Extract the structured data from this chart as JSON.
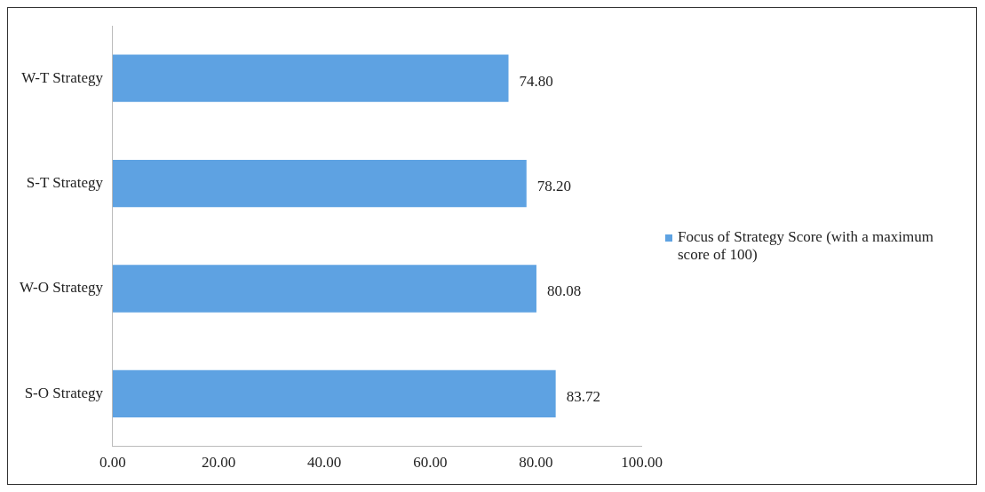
{
  "chart_data": {
    "type": "bar",
    "orientation": "horizontal",
    "categories": [
      "W-T Strategy",
      "S-T Strategy",
      "W-O Strategy",
      "S-O Strategy"
    ],
    "series": [
      {
        "name": "Focus of Strategy Score (with a maximum score of 100)",
        "color": "#5ea2e2",
        "values": [
          74.8,
          78.2,
          80.08,
          83.72
        ],
        "value_labels": [
          "74.80",
          "78.20",
          "80.08",
          "83.72"
        ]
      }
    ],
    "xlim": [
      0,
      100
    ],
    "xticks": [
      {
        "value": 0,
        "label": "0.00"
      },
      {
        "value": 20,
        "label": "20.00"
      },
      {
        "value": 40,
        "label": "40.00"
      },
      {
        "value": 60,
        "label": "60.00"
      },
      {
        "value": 80,
        "label": "80.00"
      },
      {
        "value": 100,
        "label": "100.00"
      }
    ],
    "grid": false,
    "legend": "right"
  }
}
